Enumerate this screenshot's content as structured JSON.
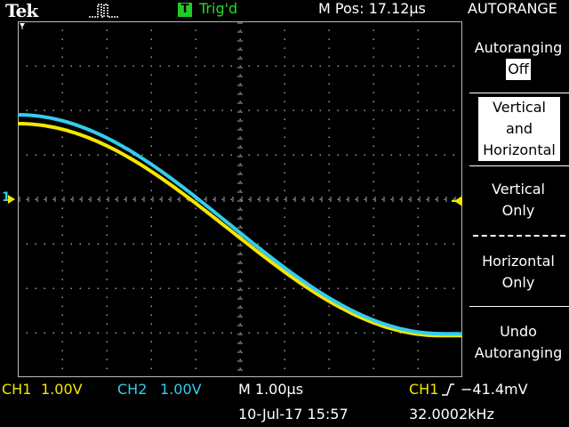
{
  "header": {
    "brand": "Tek",
    "trigger_badge": "T",
    "trigger_status": "Trig'd",
    "m_pos": "M Pos: 17.12µs",
    "menu_title": "AUTORANGE"
  },
  "menu": {
    "autoranging_label": "Autoranging",
    "autoranging_value": "Off",
    "vertical_and_horizontal": [
      "Vertical",
      "and",
      "Horizontal"
    ],
    "vertical_only": [
      "Vertical",
      "Only"
    ],
    "horizontal_only": [
      "Horizontal",
      "Only"
    ],
    "undo_autoranging": [
      "Undo",
      "Autoranging"
    ]
  },
  "footer": {
    "ch1_label": "CH1",
    "ch1_scale": "1.00V",
    "ch2_label": "CH2",
    "ch2_scale": "1.00V",
    "timebase": "M 1.00µs",
    "trigger_source": "CH1",
    "trigger_slope_icon": "rising-edge-icon",
    "trigger_level": "−41.4mV",
    "date_time": "10-Jul-17 15:57",
    "frequency": "32.0002kHz"
  },
  "markers": {
    "channel_marker": "1",
    "trigger_position_icon": "trigger-position-icon",
    "trigger_level_icon": "trigger-level-arrow-icon"
  },
  "colors": {
    "ch1": "#f5e600",
    "ch2": "#33ccee",
    "trigger": "#22dd22"
  }
}
